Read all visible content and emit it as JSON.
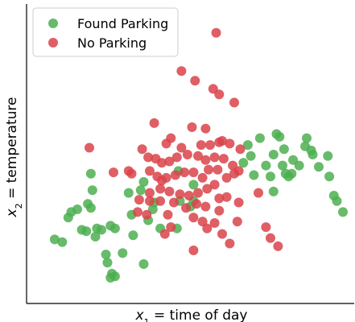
{
  "chart_data": {
    "type": "scatter",
    "title": "",
    "xlabel_var": "x",
    "xlabel_sub": "1",
    "xlabel_rest": " = time of day",
    "ylabel_var": "x",
    "ylabel_sub": "2",
    "ylabel_rest": " = temperature",
    "xlim": [
      0,
      10
    ],
    "ylim": [
      0,
      10
    ],
    "grid": false,
    "legend_position": "top-left",
    "series": [
      {
        "name": "Found Parking",
        "color": "#4caf50",
        "points": [
          [
            0.45,
            1.9
          ],
          [
            0.7,
            1.8
          ],
          [
            0.9,
            2.7
          ],
          [
            1.0,
            2.9
          ],
          [
            1.2,
            3.0
          ],
          [
            1.35,
            2.25
          ],
          [
            1.5,
            2.2
          ],
          [
            1.55,
            3.2
          ],
          [
            1.65,
            4.3
          ],
          [
            1.7,
            3.7
          ],
          [
            1.8,
            2.0
          ],
          [
            1.65,
            3.05
          ],
          [
            1.85,
            2.3
          ],
          [
            2.0,
            2.25
          ],
          [
            2.15,
            1.35
          ],
          [
            2.3,
            2.4
          ],
          [
            2.45,
            2.3
          ],
          [
            2.7,
            1.4
          ],
          [
            2.2,
            1.05
          ],
          [
            2.3,
            0.5
          ],
          [
            2.35,
            0.65
          ],
          [
            2.45,
            0.55
          ],
          [
            2.9,
            3.6
          ],
          [
            3.0,
            2.8
          ],
          [
            3.05,
            2.05
          ],
          [
            3.4,
            1.0
          ],
          [
            3.3,
            3.7
          ],
          [
            3.55,
            2.6
          ],
          [
            3.7,
            3.0
          ],
          [
            3.75,
            3.25
          ],
          [
            3.4,
            4.0
          ],
          [
            3.95,
            2.3
          ],
          [
            4.5,
            2.3
          ],
          [
            4.6,
            3.3
          ],
          [
            4.55,
            4.4
          ],
          [
            4.95,
            3.1
          ],
          [
            5.05,
            3.3
          ],
          [
            5.05,
            3.9
          ],
          [
            6.7,
            4.7
          ],
          [
            6.85,
            5.35
          ],
          [
            6.95,
            4.95
          ],
          [
            7.05,
            4.25
          ],
          [
            7.25,
            5.6
          ],
          [
            7.45,
            4.6
          ],
          [
            7.7,
            5.0
          ],
          [
            7.6,
            4.2
          ],
          [
            7.7,
            3.65
          ],
          [
            7.8,
            5.75
          ],
          [
            7.9,
            5.65
          ],
          [
            8.05,
            5.2
          ],
          [
            8.0,
            4.6
          ],
          [
            8.1,
            4.3
          ],
          [
            8.2,
            4.2
          ],
          [
            8.3,
            4.3
          ],
          [
            8.35,
            4.8
          ],
          [
            8.55,
            4.6
          ],
          [
            8.75,
            5.3
          ],
          [
            8.8,
            5.6
          ],
          [
            8.95,
            5.15
          ],
          [
            9.0,
            5.0
          ],
          [
            9.2,
            4.55
          ],
          [
            9.5,
            4.95
          ],
          [
            9.55,
            4.2
          ],
          [
            9.7,
            3.5
          ],
          [
            9.8,
            3.3
          ],
          [
            10.0,
            2.9
          ]
        ]
      },
      {
        "name": "No Parking",
        "color": "#d9434a",
        "points": [
          [
            5.8,
            9.45
          ],
          [
            4.65,
            8.05
          ],
          [
            5.1,
            7.7
          ],
          [
            5.7,
            7.4
          ],
          [
            5.9,
            7.2
          ],
          [
            6.4,
            6.9
          ],
          [
            3.75,
            6.15
          ],
          [
            5.0,
            6.0
          ],
          [
            5.45,
            5.95
          ],
          [
            6.0,
            5.5
          ],
          [
            4.3,
            5.6
          ],
          [
            4.15,
            5.4
          ],
          [
            4.65,
            5.25
          ],
          [
            5.3,
            5.35
          ],
          [
            5.6,
            5.35
          ],
          [
            5.9,
            5.45
          ],
          [
            6.25,
            5.4
          ],
          [
            6.6,
            5.2
          ],
          [
            3.35,
            5.2
          ],
          [
            3.55,
            4.9
          ],
          [
            3.8,
            4.85
          ],
          [
            4.0,
            4.7
          ],
          [
            4.25,
            4.75
          ],
          [
            4.5,
            4.9
          ],
          [
            4.85,
            5.0
          ],
          [
            5.2,
            4.95
          ],
          [
            5.45,
            4.8
          ],
          [
            5.75,
            4.9
          ],
          [
            6.05,
            4.85
          ],
          [
            6.35,
            4.6
          ],
          [
            6.55,
            4.4
          ],
          [
            1.6,
            5.25
          ],
          [
            2.4,
            4.35
          ],
          [
            2.9,
            4.4
          ],
          [
            3.0,
            4.3
          ],
          [
            3.6,
            4.4
          ],
          [
            3.85,
            4.2
          ],
          [
            4.15,
            4.15
          ],
          [
            4.45,
            4.25
          ],
          [
            4.75,
            4.35
          ],
          [
            5.05,
            4.35
          ],
          [
            5.35,
            4.15
          ],
          [
            5.55,
            4.45
          ],
          [
            5.85,
            4.45
          ],
          [
            6.15,
            4.15
          ],
          [
            6.4,
            4.3
          ],
          [
            3.6,
            3.6
          ],
          [
            3.95,
            3.75
          ],
          [
            4.25,
            3.65
          ],
          [
            4.6,
            3.55
          ],
          [
            4.9,
            3.5
          ],
          [
            5.2,
            3.6
          ],
          [
            5.5,
            3.75
          ],
          [
            5.75,
            3.9
          ],
          [
            3.25,
            3.35
          ],
          [
            3.6,
            3.3
          ],
          [
            3.95,
            3.3
          ],
          [
            4.4,
            3.25
          ],
          [
            4.8,
            3.05
          ],
          [
            5.15,
            3.2
          ],
          [
            5.45,
            3.1
          ],
          [
            3.2,
            2.9
          ],
          [
            3.5,
            2.8
          ],
          [
            4.2,
            2.8
          ],
          [
            5.05,
            2.7
          ],
          [
            5.35,
            2.55
          ],
          [
            5.9,
            2.95
          ],
          [
            6.15,
            3.45
          ],
          [
            6.55,
            3.25
          ],
          [
            7.2,
            3.6
          ],
          [
            4.1,
            2.1
          ],
          [
            4.3,
            2.35
          ],
          [
            5.5,
            2.3
          ],
          [
            5.75,
            2.5
          ],
          [
            6.0,
            2.1
          ],
          [
            6.25,
            1.75
          ],
          [
            6.5,
            2.55
          ],
          [
            7.45,
            2.35
          ],
          [
            7.6,
            1.95
          ],
          [
            5.05,
            1.5
          ],
          [
            7.85,
            1.65
          ],
          [
            4.0,
            4.05
          ],
          [
            5.9,
            3.4
          ]
        ]
      }
    ]
  }
}
